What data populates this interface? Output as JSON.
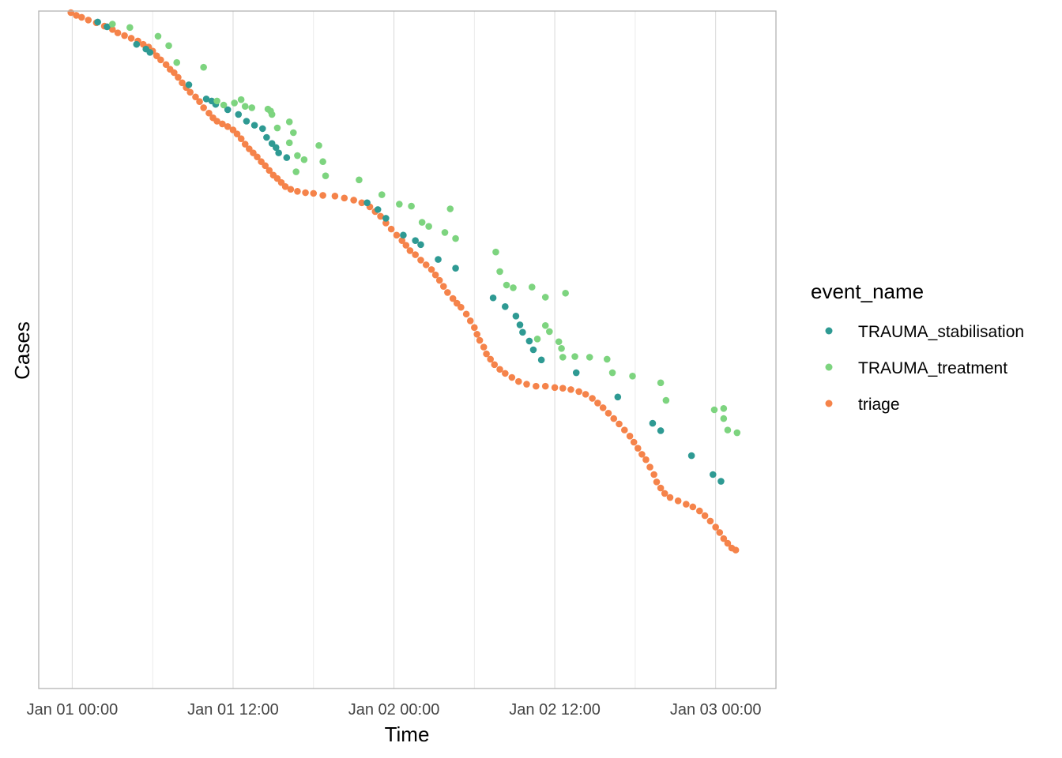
{
  "chart_data": {
    "type": "scatter",
    "xlabel": "Time",
    "ylabel": "Cases",
    "x_axis": "datetime (hours since Jan 01 00:00)",
    "x_ticks": [
      {
        "value": 0,
        "label": "Jan 01 00:00"
      },
      {
        "value": 12,
        "label": "Jan 01 12:00"
      },
      {
        "value": 24,
        "label": "Jan 02 00:00"
      },
      {
        "value": 36,
        "label": "Jan 02 12:00"
      },
      {
        "value": 48,
        "label": "Jan 03 00:00"
      }
    ],
    "xlim": [
      -2.5,
      52.5
    ],
    "y_axis_labels_shown": false,
    "ylim": [
      0,
      100
    ],
    "y_direction": "cases ordered top to bottom",
    "grid": "vertical only",
    "legend": {
      "title": "event_name",
      "position": "right",
      "entries": [
        {
          "label": "TRAUMA_stabilisation",
          "color": "#2e9a93"
        },
        {
          "label": "TRAUMA_treatment",
          "color": "#7dd47f"
        },
        {
          "label": "triage",
          "color": "#f5834a"
        }
      ]
    },
    "series": [
      {
        "name": "triage",
        "color": "#f5834a",
        "points": [
          [
            -0.1,
            100
          ],
          [
            0.3,
            99.6
          ],
          [
            0.7,
            99.3
          ],
          [
            1.2,
            98.9
          ],
          [
            1.8,
            98.5
          ],
          [
            2.4,
            98
          ],
          [
            3,
            97.5
          ],
          [
            3.4,
            97
          ],
          [
            3.9,
            96.6
          ],
          [
            4.4,
            96.2
          ],
          [
            4.9,
            95.8
          ],
          [
            5.3,
            95.3
          ],
          [
            5.7,
            94.9
          ],
          [
            6,
            94.3
          ],
          [
            6.3,
            93.6
          ],
          [
            6.6,
            93
          ],
          [
            7,
            92.3
          ],
          [
            7.3,
            91.6
          ],
          [
            7.6,
            91.1
          ],
          [
            7.9,
            90.4
          ],
          [
            8.2,
            89.6
          ],
          [
            8.5,
            88.9
          ],
          [
            8.8,
            88.2
          ],
          [
            9.2,
            87.5
          ],
          [
            9.5,
            86.8
          ],
          [
            9.8,
            85.9
          ],
          [
            10.2,
            85.1
          ],
          [
            10.5,
            84.4
          ],
          [
            10.8,
            83.9
          ],
          [
            11.2,
            83.5
          ],
          [
            11.6,
            83.1
          ],
          [
            12,
            82.6
          ],
          [
            12.3,
            82
          ],
          [
            12.6,
            81.3
          ],
          [
            12.9,
            80.5
          ],
          [
            13.2,
            79.8
          ],
          [
            13.5,
            79.2
          ],
          [
            13.8,
            78.6
          ],
          [
            14.1,
            77.9
          ],
          [
            14.4,
            77.3
          ],
          [
            14.7,
            76.6
          ],
          [
            15,
            75.9
          ],
          [
            15.3,
            75.4
          ],
          [
            15.6,
            74.8
          ],
          [
            15.9,
            74.2
          ],
          [
            16.3,
            73.8
          ],
          [
            16.8,
            73.5
          ],
          [
            17.4,
            73.3
          ],
          [
            18,
            73.2
          ],
          [
            18.7,
            72.9
          ],
          [
            19.6,
            72.8
          ],
          [
            20.3,
            72.5
          ],
          [
            21,
            72.2
          ],
          [
            21.6,
            71.8
          ],
          [
            22.2,
            71.2
          ],
          [
            22.6,
            70.5
          ],
          [
            23,
            69.8
          ],
          [
            23.4,
            68.8
          ],
          [
            23.8,
            67.9
          ],
          [
            24.2,
            67
          ],
          [
            24.6,
            66.2
          ],
          [
            24.9,
            65.5
          ],
          [
            25.2,
            64.7
          ],
          [
            25.6,
            64.1
          ],
          [
            26,
            63.3
          ],
          [
            26.4,
            62.6
          ],
          [
            26.8,
            61.9
          ],
          [
            27.1,
            61.1
          ],
          [
            27.4,
            60.3
          ],
          [
            27.7,
            59.4
          ],
          [
            28,
            58.5
          ],
          [
            28.4,
            57.6
          ],
          [
            28.7,
            56.9
          ],
          [
            29,
            56.3
          ],
          [
            29.4,
            55.3
          ],
          [
            29.7,
            54.3
          ],
          [
            30,
            53.3
          ],
          [
            30.2,
            52.3
          ],
          [
            30.4,
            51.4
          ],
          [
            30.7,
            50.4
          ],
          [
            30.9,
            49.4
          ],
          [
            31.2,
            48.6
          ],
          [
            31.5,
            47.8
          ],
          [
            31.9,
            47.1
          ],
          [
            32.3,
            46.5
          ],
          [
            32.8,
            45.9
          ],
          [
            33.3,
            45.3
          ],
          [
            33.9,
            44.9
          ],
          [
            34.6,
            44.6
          ],
          [
            35.3,
            44.6
          ],
          [
            36,
            44.4
          ],
          [
            36.6,
            44.3
          ],
          [
            37.2,
            44.1
          ],
          [
            37.8,
            43.8
          ],
          [
            38.3,
            43.4
          ],
          [
            38.8,
            42.8
          ],
          [
            39.2,
            42.1
          ],
          [
            39.6,
            41.4
          ],
          [
            40,
            40.6
          ],
          [
            40.4,
            39.8
          ],
          [
            40.8,
            39
          ],
          [
            41.2,
            38.1
          ],
          [
            41.6,
            37.2
          ],
          [
            41.9,
            36.3
          ],
          [
            42.2,
            35.4
          ],
          [
            42.5,
            34.5
          ],
          [
            42.8,
            33.7
          ],
          [
            43.1,
            32.6
          ],
          [
            43.4,
            31.5
          ],
          [
            43.6,
            30.4
          ],
          [
            43.9,
            29.5
          ],
          [
            44.2,
            28.7
          ],
          [
            44.6,
            28.1
          ],
          [
            45.2,
            27.6
          ],
          [
            45.8,
            27.1
          ],
          [
            46.3,
            26.7
          ],
          [
            46.8,
            26.1
          ],
          [
            47.2,
            25.4
          ],
          [
            47.6,
            24.6
          ],
          [
            48,
            23.7
          ],
          [
            48.3,
            22.9
          ],
          [
            48.6,
            22
          ],
          [
            48.9,
            21.3
          ],
          [
            49.2,
            20.6
          ],
          [
            49.5,
            20.3
          ]
        ]
      },
      {
        "name": "TRAUMA_stabilisation",
        "color": "#2e9a93",
        "points": [
          [
            1.9,
            98.6
          ],
          [
            2.6,
            97.9
          ],
          [
            4.8,
            95.3
          ],
          [
            5.5,
            94.6
          ],
          [
            5.8,
            94.1
          ],
          [
            8.7,
            89.3
          ],
          [
            10,
            87.2
          ],
          [
            10.4,
            86.9
          ],
          [
            10.7,
            86.4
          ],
          [
            11.6,
            85.6
          ],
          [
            12.4,
            84.9
          ],
          [
            13,
            83.9
          ],
          [
            13.6,
            83.3
          ],
          [
            14.2,
            82.8
          ],
          [
            14.5,
            81.5
          ],
          [
            14.9,
            80.6
          ],
          [
            15.2,
            80
          ],
          [
            15.4,
            79.2
          ],
          [
            16,
            78.5
          ],
          [
            22,
            71.8
          ],
          [
            22.8,
            70.8
          ],
          [
            23.4,
            69.5
          ],
          [
            24.7,
            67
          ],
          [
            25.6,
            66.2
          ],
          [
            26,
            65.6
          ],
          [
            27.3,
            63.4
          ],
          [
            28.6,
            62.1
          ],
          [
            31.4,
            57.7
          ],
          [
            32.3,
            56.4
          ],
          [
            33.1,
            55
          ],
          [
            33.4,
            53.7
          ],
          [
            33.6,
            52.6
          ],
          [
            34.1,
            51.3
          ],
          [
            34.4,
            50
          ],
          [
            35,
            48.5
          ],
          [
            37.6,
            46.6
          ],
          [
            40.7,
            43
          ],
          [
            43.3,
            39.1
          ],
          [
            43.9,
            38
          ],
          [
            46.2,
            34.3
          ],
          [
            47.8,
            31.5
          ],
          [
            48.4,
            30.5
          ]
        ]
      },
      {
        "name": "TRAUMA_treatment",
        "color": "#7dd47f",
        "points": [
          [
            3,
            98.3
          ],
          [
            4.3,
            97.8
          ],
          [
            6.4,
            96.5
          ],
          [
            7.2,
            95.1
          ],
          [
            7.8,
            92.6
          ],
          [
            9.8,
            91.9
          ],
          [
            12.6,
            87.1
          ],
          [
            10.8,
            86.9
          ],
          [
            12.1,
            86.6
          ],
          [
            11.3,
            86.3
          ],
          [
            12.9,
            86.1
          ],
          [
            13.4,
            85.9
          ],
          [
            14.6,
            85.7
          ],
          [
            14.8,
            85.4
          ],
          [
            16.2,
            83.8
          ],
          [
            15.3,
            82.9
          ],
          [
            16.5,
            82.2
          ],
          [
            14.9,
            84.9
          ],
          [
            16.2,
            80.7
          ],
          [
            18.4,
            80.3
          ],
          [
            16.8,
            78.8
          ],
          [
            17.3,
            78.2
          ],
          [
            18.7,
            77.9
          ],
          [
            16.7,
            76.4
          ],
          [
            18.9,
            75.8
          ],
          [
            21.4,
            75.2
          ],
          [
            23.1,
            73
          ],
          [
            24.4,
            71.6
          ],
          [
            25.3,
            71.3
          ],
          [
            28.2,
            70.9
          ],
          [
            26.1,
            68.9
          ],
          [
            26.6,
            68.3
          ],
          [
            27.8,
            67.4
          ],
          [
            28.6,
            66.5
          ],
          [
            31.6,
            64.5
          ],
          [
            31.9,
            61.6
          ],
          [
            32.4,
            59.6
          ],
          [
            32.9,
            59.2
          ],
          [
            34.3,
            59.3
          ],
          [
            35.3,
            57.8
          ],
          [
            36.8,
            58.4
          ],
          [
            35.3,
            53.6
          ],
          [
            35.6,
            52.7
          ],
          [
            34.7,
            51.6
          ],
          [
            36.3,
            51.2
          ],
          [
            36.5,
            50.2
          ],
          [
            36.6,
            48.9
          ],
          [
            37.5,
            49
          ],
          [
            38.6,
            48.9
          ],
          [
            39.9,
            48.6
          ],
          [
            40.3,
            46.6
          ],
          [
            41.8,
            46.1
          ],
          [
            43.9,
            45.1
          ],
          [
            44.3,
            42.5
          ],
          [
            47.9,
            41.1
          ],
          [
            48.6,
            41.3
          ],
          [
            48.6,
            39.8
          ],
          [
            48.9,
            38.1
          ],
          [
            49.6,
            37.7
          ]
        ]
      }
    ]
  }
}
